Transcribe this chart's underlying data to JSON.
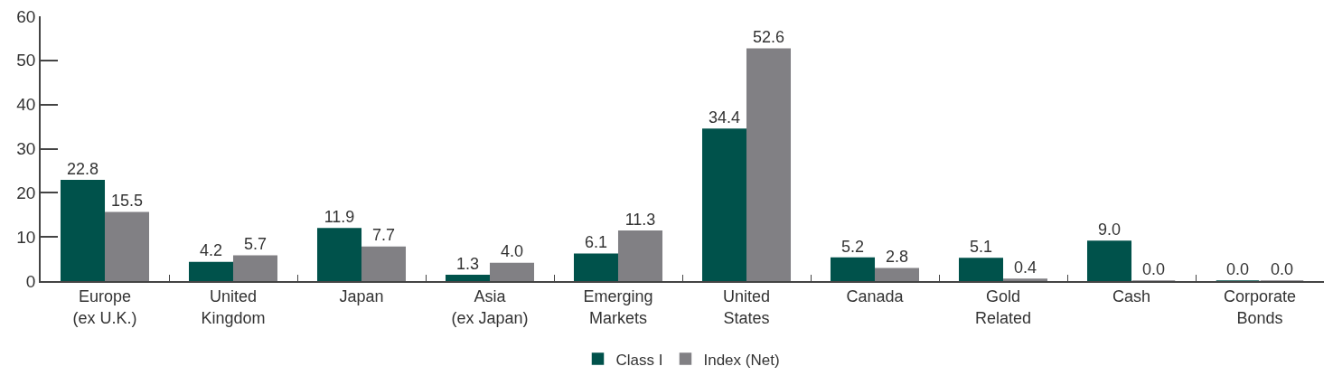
{
  "chart_data": {
    "type": "bar",
    "categories": [
      "Europe (ex U.K.)",
      "United Kingdom",
      "Japan",
      "Asia (ex Japan)",
      "Emerging Markets",
      "United States",
      "Canada",
      "Gold Related",
      "Cash",
      "Corporate Bonds"
    ],
    "series": [
      {
        "name": "Class I",
        "color": "#00524b",
        "values": [
          22.8,
          4.2,
          11.9,
          1.3,
          6.1,
          34.4,
          5.2,
          5.1,
          9.0,
          0.0
        ],
        "value_labels": [
          "22.8",
          "4.2",
          "11.9",
          "1.3",
          "6.1",
          "34.4",
          "5.2",
          "5.1",
          "9.0",
          "0.0"
        ]
      },
      {
        "name": "Index (Net)",
        "color": "#818084",
        "values": [
          15.5,
          5.7,
          7.7,
          4.0,
          11.3,
          52.6,
          2.8,
          0.4,
          0.0,
          0.0
        ],
        "value_labels": [
          "15.5",
          "5.7",
          "7.7",
          "4.0",
          "11.3",
          "52.6",
          "2.8",
          "0.4",
          "0.0",
          "0.0"
        ]
      }
    ],
    "ylim": [
      0,
      60
    ],
    "yticks": [
      0,
      10,
      20,
      30,
      40,
      50,
      60
    ],
    "legend": "bottom"
  }
}
